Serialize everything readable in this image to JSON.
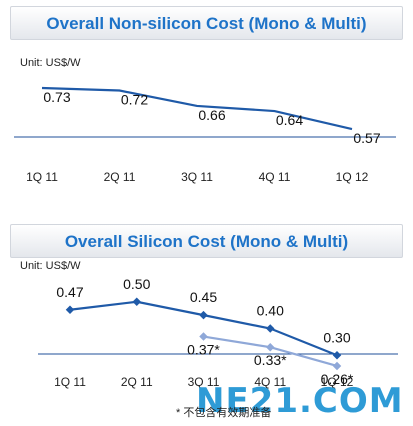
{
  "chart_data": [
    {
      "type": "line",
      "title": "Overall Non-silicon Cost (Mono & Multi)",
      "unit": "Unit: US$/W",
      "categories": [
        "1Q 11",
        "2Q 11",
        "3Q 11",
        "4Q 11",
        "1Q 12"
      ],
      "series": [
        {
          "values": [
            0.73,
            0.72,
            0.66,
            0.64,
            0.57
          ],
          "labels": [
            "0.73",
            "0.72",
            "0.66",
            "0.64",
            "0.57"
          ],
          "color": "#1f5aa8"
        }
      ],
      "markers": false,
      "ylim": [
        0.5,
        0.8
      ]
    },
    {
      "type": "line",
      "title": "Overall Silicon Cost (Mono & Multi)",
      "unit": "Unit: US$/W",
      "categories": [
        "1Q 11",
        "2Q 11",
        "3Q 11",
        "4Q 11",
        "1Q 12"
      ],
      "series": [
        {
          "values": [
            0.47,
            0.5,
            0.45,
            0.4,
            0.3
          ],
          "labels": [
            "0.47",
            "0.50",
            "0.45",
            "0.40",
            "0.30"
          ],
          "color": "#1f5aa8"
        },
        {
          "values": [
            null,
            null,
            0.37,
            0.33,
            0.26
          ],
          "labels": [
            null,
            null,
            "0.37*",
            "0.33*",
            "0.26*"
          ],
          "color": "#8fa8d8"
        }
      ],
      "markers": true,
      "ylim": [
        0.2,
        0.6
      ]
    }
  ],
  "watermark": "NE21.COM",
  "footnote": "* 不包含有效期准备"
}
